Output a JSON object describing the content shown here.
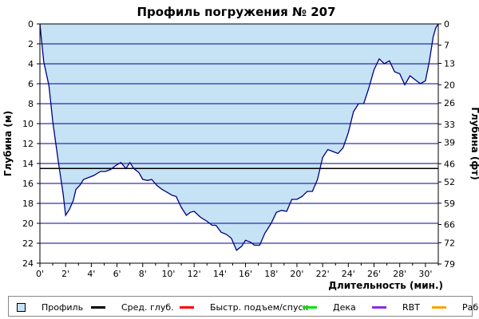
{
  "chart_data": {
    "type": "area",
    "title": "Профиль погружения № 207",
    "xlabel": "Длительность (мин.)",
    "ylabel": "Глубина (м)",
    "ylabel_right": "Глубина (фт)",
    "xlim": [
      0,
      31
    ],
    "ylim": [
      24,
      0
    ],
    "y_inverted": true,
    "x_ticks": [
      "0'",
      "2'",
      "4'",
      "6'",
      "8'",
      "10'",
      "12'",
      "14'",
      "16'",
      "18'",
      "20'",
      "22'",
      "24'",
      "26'",
      "28'",
      "30'"
    ],
    "x_tick_values": [
      0,
      2,
      4,
      6,
      8,
      10,
      12,
      14,
      16,
      18,
      20,
      22,
      24,
      26,
      28,
      30
    ],
    "y_ticks_left": [
      "0",
      "2",
      "4",
      "6",
      "8",
      "10",
      "12",
      "14",
      "16",
      "18",
      "20",
      "22",
      "24"
    ],
    "y_tick_values_left": [
      0,
      2,
      4,
      6,
      8,
      10,
      12,
      14,
      16,
      18,
      20,
      22,
      24
    ],
    "y_ticks_right": [
      "0",
      "7",
      "13",
      "20",
      "26",
      "33",
      "39",
      "46",
      "52",
      "59",
      "66",
      "72",
      "79"
    ],
    "y_tick_values_right_m": [
      0,
      2.13,
      3.96,
      6.1,
      7.92,
      10.06,
      11.89,
      14.02,
      15.85,
      17.98,
      20.12,
      21.95,
      24.08
    ],
    "grid": true,
    "average_depth": 14.5,
    "colors": {
      "profile_fill": "#c6e2f5",
      "profile_line": "#000080",
      "grid": "#0000a0",
      "average": "#000000"
    },
    "series": [
      {
        "name": "Профиль",
        "x": [
          0,
          0.1,
          0.3,
          0.7,
          1.0,
          1.4,
          1.8,
          2.0,
          2.3,
          2.6,
          2.8,
          3.1,
          3.4,
          3.8,
          4.2,
          4.7,
          5.1,
          5.5,
          5.9,
          6.3,
          6.7,
          7.0,
          7.3,
          7.7,
          8.0,
          8.4,
          8.7,
          9.1,
          9.5,
          9.9,
          10.3,
          10.6,
          11.0,
          11.4,
          11.7,
          12.0,
          12.5,
          13.0,
          13.4,
          13.7,
          14.1,
          14.5,
          14.9,
          15.3,
          15.7,
          16.0,
          16.4,
          16.7,
          17.1,
          17.5,
          18.0,
          18.4,
          18.8,
          19.2,
          19.6,
          20.0,
          20.4,
          20.8,
          21.2,
          21.6,
          22.0,
          22.4,
          22.8,
          23.2,
          23.6,
          24.0,
          24.4,
          24.8,
          25.2,
          25.6,
          26.0,
          26.4,
          26.8,
          27.2,
          27.6,
          28.0,
          28.4,
          28.8,
          29.2,
          29.6,
          30.0,
          30.3,
          30.6,
          30.8,
          31.0
        ],
        "values": [
          0,
          1.3,
          3.8,
          6.2,
          9.8,
          13.5,
          17.0,
          19.2,
          18.6,
          17.7,
          16.6,
          16.2,
          15.6,
          15.4,
          15.2,
          14.8,
          14.8,
          14.6,
          14.2,
          13.9,
          14.5,
          13.9,
          14.5,
          14.9,
          15.6,
          15.7,
          15.6,
          16.2,
          16.6,
          16.9,
          17.2,
          17.3,
          18.4,
          19.2,
          18.9,
          18.8,
          19.4,
          19.8,
          20.2,
          20.2,
          20.9,
          21.1,
          21.5,
          22.7,
          22.3,
          21.7,
          21.9,
          22.2,
          22.2,
          21.0,
          20.0,
          18.9,
          18.7,
          18.8,
          17.6,
          17.6,
          17.3,
          16.8,
          16.8,
          15.6,
          13.4,
          12.6,
          12.8,
          13.0,
          12.4,
          10.9,
          8.8,
          8.0,
          8.0,
          6.4,
          4.6,
          3.5,
          4.0,
          3.7,
          4.8,
          5.0,
          6.1,
          5.2,
          5.6,
          6.0,
          5.7,
          3.8,
          1.3,
          0.4,
          0
        ]
      }
    ]
  },
  "legend": [
    {
      "label": "Профиль",
      "color": "#c6e2f5",
      "kind": "box"
    },
    {
      "label": "Сред. глуб.",
      "color": "#000000",
      "kind": "line"
    },
    {
      "label": "Быстр. подъем/спуск",
      "color": "#ff0000",
      "kind": "line"
    },
    {
      "label": "Дека",
      "color": "#00e000",
      "kind": "line"
    },
    {
      "label": "RBT",
      "color": "#8a2be2",
      "kind": "line"
    },
    {
      "label": "Раб.",
      "color": "#ffa000",
      "kind": "line"
    }
  ]
}
